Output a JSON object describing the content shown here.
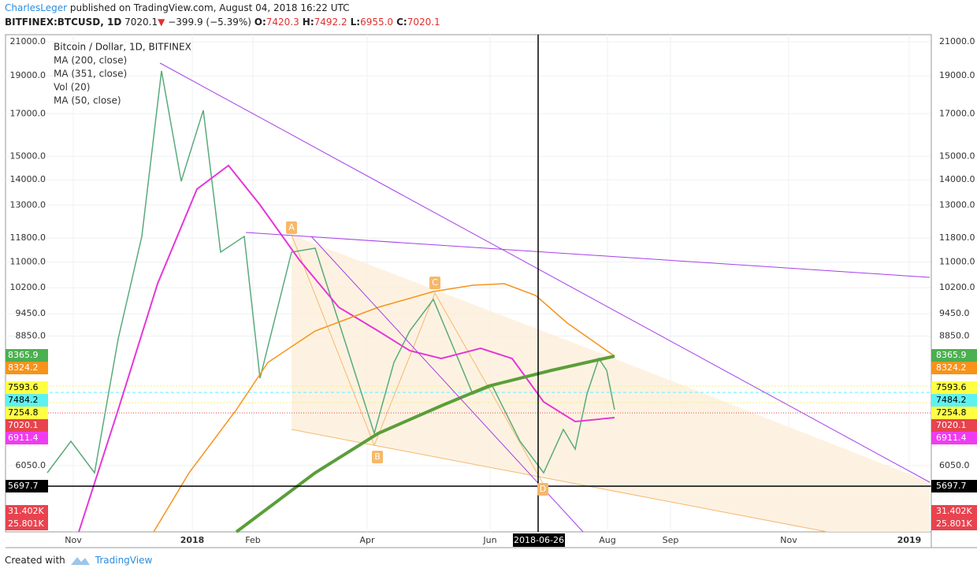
{
  "header": {
    "author": "CharlesLeger",
    "published": "published on TradingView.com, August 04, 2018 16:22 UTC",
    "symbol": "BITFINEX:BTCUSD, 1D",
    "last": "7020.1",
    "change": "−399.9 (−5.39%)",
    "ohlc": [
      {
        "key": "O:",
        "value": "7420.3"
      },
      {
        "key": "H:",
        "value": "7492.2"
      },
      {
        "key": "L:",
        "value": "6955.0"
      },
      {
        "key": "C:",
        "value": "7020.1"
      }
    ]
  },
  "legend": [
    "Bitcoin / Dollar, 1D, BITFINEX",
    "MA (200, close)",
    "MA (351, close)",
    "Vol (20)",
    "MA (50, close)"
  ],
  "price_axis": {
    "log": true,
    "ylim": [
      4980,
      21440
    ],
    "ticks": [
      {
        "value": 21000,
        "label": "21000.0"
      },
      {
        "value": 19000,
        "label": "19000.0"
      },
      {
        "value": 17000,
        "label": "17000.0"
      },
      {
        "value": 15000,
        "label": "15000.0"
      },
      {
        "value": 14000,
        "label": "14000.0"
      },
      {
        "value": 13000,
        "label": "13000.0"
      },
      {
        "value": 11800,
        "label": "11800.0"
      },
      {
        "value": 11000,
        "label": "11000.0"
      },
      {
        "value": 10200,
        "label": "10200.0"
      },
      {
        "value": 9450,
        "label": "9450.0"
      },
      {
        "value": 8850,
        "label": "8850.0"
      },
      {
        "value": 6050,
        "label": "6050.0"
      }
    ]
  },
  "price_tags": [
    {
      "label": "8365.9",
      "color": "#4caf50"
    },
    {
      "label": "8324.2",
      "color": "#f7931a"
    },
    {
      "label": "7593.6",
      "color": "#ffff44"
    },
    {
      "label": "7484.2",
      "color": "#5ef1f1"
    },
    {
      "label": "7254.8",
      "color": "#ffff44"
    },
    {
      "label": "7020.1",
      "color": "#e8434e"
    },
    {
      "label": "6911.4",
      "color": "#f03cf0"
    },
    {
      "label": "5697.7",
      "color": "#000000"
    },
    {
      "label": "31.402K",
      "color": "#e8434e"
    },
    {
      "label": "25.801K",
      "color": "#e8434e"
    }
  ],
  "time_axis": [
    "Nov",
    "2018",
    "Feb",
    "Apr",
    "Jun",
    "Aug",
    "Sep",
    "Nov",
    "2019"
  ],
  "cursor_date": "2018-06-26",
  "pattern_points": [
    "A",
    "B",
    "C",
    "D"
  ],
  "footer": {
    "created": "Created with",
    "brand": "TradingView"
  }
}
